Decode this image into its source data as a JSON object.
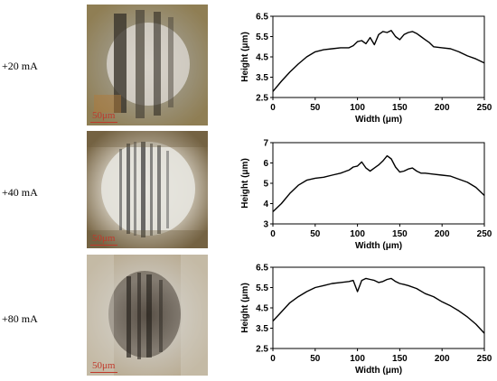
{
  "rows": [
    {
      "label": "+20 mA",
      "scale_label": "50μm"
    },
    {
      "label": "+40 mA",
      "scale_label": "50μm"
    },
    {
      "label": "+80 mA",
      "scale_label": "50μm"
    }
  ],
  "chart_data": [
    {
      "type": "line",
      "title": "",
      "xlabel": "Width (μm)",
      "ylabel": "Height (μm)",
      "xlim": [
        0,
        250
      ],
      "ylim": [
        2.5,
        6.5
      ],
      "xticks": [
        0,
        50,
        100,
        150,
        200,
        250
      ],
      "yticks": [
        2.5,
        3.5,
        4.5,
        5.5,
        6.5
      ],
      "grid": false,
      "x": [
        0,
        10,
        20,
        30,
        40,
        50,
        60,
        70,
        80,
        90,
        95,
        100,
        105,
        110,
        115,
        120,
        125,
        130,
        135,
        140,
        145,
        150,
        155,
        160,
        165,
        170,
        175,
        180,
        185,
        190,
        200,
        210,
        220,
        230,
        240,
        250
      ],
      "y": [
        2.8,
        3.3,
        3.75,
        4.15,
        4.5,
        4.75,
        4.85,
        4.9,
        4.95,
        4.95,
        5.05,
        5.25,
        5.3,
        5.15,
        5.45,
        5.1,
        5.6,
        5.75,
        5.7,
        5.8,
        5.5,
        5.35,
        5.6,
        5.7,
        5.75,
        5.65,
        5.5,
        5.35,
        5.2,
        5.0,
        4.95,
        4.9,
        4.75,
        4.55,
        4.4,
        4.2
      ]
    },
    {
      "type": "line",
      "title": "",
      "xlabel": "Width (μm)",
      "ylabel": "Height (μm)",
      "xlim": [
        0,
        250
      ],
      "ylim": [
        3,
        7
      ],
      "xticks": [
        0,
        50,
        100,
        150,
        200,
        250
      ],
      "yticks": [
        3,
        4,
        5,
        6,
        7
      ],
      "grid": false,
      "x": [
        0,
        10,
        20,
        30,
        40,
        50,
        60,
        70,
        80,
        90,
        95,
        100,
        105,
        110,
        115,
        120,
        125,
        130,
        135,
        140,
        145,
        150,
        155,
        160,
        165,
        170,
        175,
        180,
        190,
        200,
        210,
        220,
        230,
        240,
        250
      ],
      "y": [
        3.6,
        4.0,
        4.5,
        4.9,
        5.15,
        5.25,
        5.3,
        5.4,
        5.5,
        5.65,
        5.8,
        5.85,
        6.05,
        5.75,
        5.6,
        5.75,
        5.9,
        6.1,
        6.35,
        6.2,
        5.8,
        5.55,
        5.6,
        5.7,
        5.75,
        5.6,
        5.5,
        5.5,
        5.45,
        5.4,
        5.35,
        5.2,
        5.05,
        4.8,
        4.4
      ]
    },
    {
      "type": "line",
      "title": "",
      "xlabel": "Width (μm)",
      "ylabel": "Height (μm)",
      "xlim": [
        0,
        250
      ],
      "ylim": [
        2.5,
        6.5
      ],
      "xticks": [
        0,
        50,
        100,
        150,
        200,
        250
      ],
      "yticks": [
        2.5,
        3.5,
        4.5,
        5.5,
        6.5
      ],
      "grid": false,
      "x": [
        0,
        10,
        20,
        30,
        40,
        50,
        60,
        70,
        80,
        90,
        95,
        100,
        105,
        110,
        115,
        120,
        125,
        130,
        135,
        140,
        145,
        150,
        155,
        160,
        170,
        180,
        190,
        200,
        210,
        220,
        230,
        240,
        250
      ],
      "y": [
        3.85,
        4.3,
        4.75,
        5.05,
        5.3,
        5.5,
        5.6,
        5.7,
        5.75,
        5.8,
        5.85,
        5.3,
        5.85,
        5.95,
        5.9,
        5.85,
        5.75,
        5.8,
        5.9,
        5.95,
        5.8,
        5.7,
        5.65,
        5.6,
        5.45,
        5.2,
        5.05,
        4.8,
        4.6,
        4.35,
        4.05,
        3.7,
        3.25
      ]
    }
  ]
}
